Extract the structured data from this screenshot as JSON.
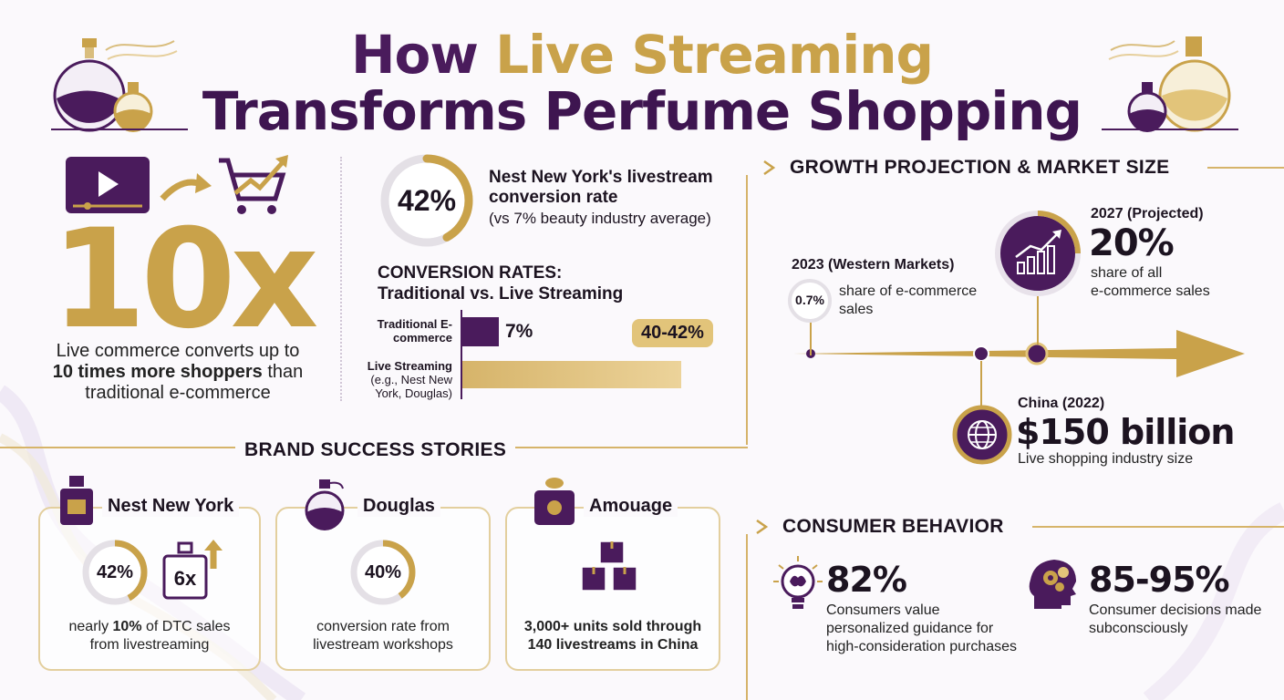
{
  "title": {
    "part1": "How ",
    "highlight": "Live Streaming",
    "line2": "Transforms Perfume Shopping"
  },
  "hero": {
    "big_stat": "10x",
    "desc_pre": "Live commerce converts up to",
    "desc_bold": "10 times more shoppers",
    "desc_post": "than traditional e-commerce"
  },
  "nest_stat": {
    "percent": "42%",
    "percent_value": 42,
    "heading": "Nest New York's livestream conversion rate",
    "sub": "(vs 7% beauty industry average)"
  },
  "conversion": {
    "title_line1": "CONVERSION RATES:",
    "title_line2": "Traditional vs. Live Streaming",
    "bars": [
      {
        "label_bold": "Traditional E-commerce",
        "label_light": "",
        "value_text": "7%",
        "value": 7
      },
      {
        "label_bold": "Live Streaming",
        "label_light": "(e.g., Nest New York, Douglas)",
        "value_text": "40-42%",
        "value": 42
      }
    ]
  },
  "growth": {
    "title": "GROWTH PROJECTION & MARKET SIZE",
    "y2023": {
      "heading": "2023 (Western Markets)",
      "badge": "0.7%",
      "text": "share of e-commerce sales"
    },
    "y2027": {
      "heading": "2027 (Projected)",
      "big": "20%",
      "text_l1": "share of all",
      "text_l2": "e-commerce sales"
    },
    "china": {
      "heading": "China (2022)",
      "big": "$150 billion",
      "text": "Live shopping industry size"
    }
  },
  "brands": {
    "title": "BRAND SUCCESS STORIES",
    "cards": [
      {
        "name": "Nest New York",
        "percent": "42%",
        "percent_value": 42,
        "badge": "6x",
        "text_pre": "nearly ",
        "text_bold": "10%",
        "text_post": " of DTC sales",
        "text_l2": "from livestreaming"
      },
      {
        "name": "Douglas",
        "percent": "40%",
        "percent_value": 40,
        "text_l1": "conversion rate from",
        "text_l2": "livestream workshops"
      },
      {
        "name": "Amouage",
        "text_l1": "3,000+ units sold through",
        "text_l2": "140 livestreams in China"
      }
    ]
  },
  "consumer": {
    "title": "CONSUMER BEHAVIOR",
    "items": [
      {
        "stat": "82%",
        "text": "Consumers value personalized guidance for high-consideration purchases",
        "icon": "brain-bulb-icon"
      },
      {
        "stat": "85-95%",
        "text": "Consumer decisions made subconsciously",
        "icon": "head-gears-icon"
      }
    ]
  },
  "colors": {
    "purple": "#4a1b5c",
    "gold": "#c9a24a",
    "light_gold": "#e2c47a"
  }
}
